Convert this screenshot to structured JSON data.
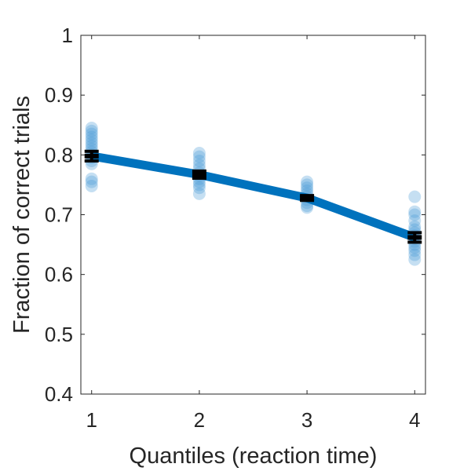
{
  "chart_data": {
    "type": "line",
    "title": "",
    "xlabel": "Quantiles (reaction time)",
    "ylabel": "Fraction of correct trials",
    "xlim": [
      0.9,
      4.1
    ],
    "ylim": [
      0.4,
      1.0
    ],
    "xticks": [
      1,
      2,
      3,
      4
    ],
    "xtick_labels": [
      "1",
      "2",
      "3",
      "4"
    ],
    "yticks": [
      0.4,
      0.5,
      0.6,
      0.7,
      0.8,
      0.9,
      1.0
    ],
    "ytick_labels": [
      "0.4",
      "0.5",
      "0.6",
      "0.7",
      "0.8",
      "0.9",
      "1"
    ],
    "grid": false,
    "colors": {
      "mean_line": "#0072BD",
      "points": "#4A9BD6",
      "error_bars": "#000000",
      "axes": "#262626"
    },
    "mean_line": {
      "x": [
        1,
        2,
        3,
        4
      ],
      "y": [
        0.798,
        0.767,
        0.728,
        0.662
      ]
    },
    "error_bars": [
      {
        "x": 1,
        "mean": 0.798,
        "sem": 0.008
      },
      {
        "x": 2,
        "mean": 0.767,
        "sem": 0.006
      },
      {
        "x": 3,
        "mean": 0.728,
        "sem": 0.004
      },
      {
        "x": 4,
        "mean": 0.662,
        "sem": 0.008
      }
    ],
    "individual_points": [
      {
        "x": 1,
        "y": [
          0.845,
          0.84,
          0.835,
          0.83,
          0.825,
          0.82,
          0.815,
          0.81,
          0.805,
          0.8,
          0.795,
          0.79,
          0.785,
          0.76,
          0.755,
          0.748
        ]
      },
      {
        "x": 2,
        "y": [
          0.803,
          0.797,
          0.79,
          0.783,
          0.777,
          0.77,
          0.765,
          0.76,
          0.755,
          0.75,
          0.745,
          0.735
        ]
      },
      {
        "x": 3,
        "y": [
          0.755,
          0.75,
          0.745,
          0.74,
          0.735,
          0.73,
          0.725,
          0.72,
          0.715,
          0.712
        ]
      },
      {
        "x": 4,
        "y": [
          0.73,
          0.705,
          0.7,
          0.69,
          0.68,
          0.675,
          0.67,
          0.665,
          0.66,
          0.655,
          0.65,
          0.645,
          0.64,
          0.633,
          0.625
        ]
      }
    ]
  }
}
